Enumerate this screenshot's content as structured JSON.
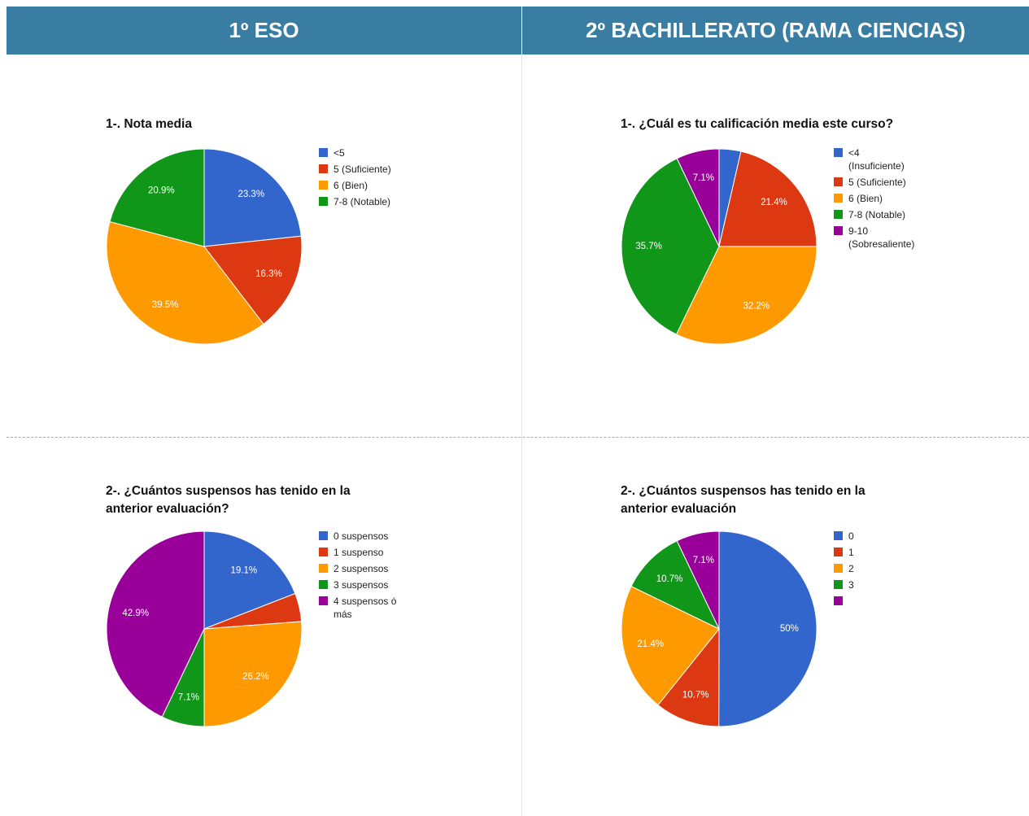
{
  "headers": [
    "1º ESO",
    "2º BACHILLERATO (RAMA CIENCIAS)"
  ],
  "chart_data": [
    {
      "type": "pie",
      "title": "1-. Nota media",
      "categories": [
        "<5",
        "5 (Suficiente)",
        "6 (Bien)",
        "7-8 (Notable)"
      ],
      "values": [
        23.3,
        16.3,
        39.5,
        20.9
      ],
      "value_labels": [
        "23.3%",
        "16.3%",
        "39.5%",
        "20.9%"
      ],
      "colors": [
        "#3366cc",
        "#dc3912",
        "#ff9900",
        "#109618"
      ]
    },
    {
      "type": "pie",
      "title": "1-. ¿Cuál es tu calificación media este curso?",
      "categories": [
        "<4 (Insuficiente)",
        "5 (Suficiente)",
        "6 (Bien)",
        "7-8 (Notable)",
        "9-10 (Sobresaliente)"
      ],
      "values": [
        3.6,
        21.4,
        32.2,
        35.7,
        7.1
      ],
      "value_labels": [
        null,
        "21.4%",
        "32.2%",
        "35.7%",
        "7.1%"
      ],
      "colors": [
        "#3366cc",
        "#dc3912",
        "#ff9900",
        "#109618",
        "#990099"
      ]
    },
    {
      "type": "pie",
      "title": "2-. ¿Cuántos suspensos has tenido en la anterior evaluación?",
      "categories": [
        "0 suspensos",
        "1 suspenso",
        "2 suspensos",
        "3 suspensos",
        "4 suspensos ó más"
      ],
      "values": [
        19.1,
        4.7,
        26.2,
        7.1,
        42.9
      ],
      "value_labels": [
        "19.1%",
        null,
        "26.2%",
        "7.1%",
        "42.9%"
      ],
      "colors": [
        "#3366cc",
        "#dc3912",
        "#ff9900",
        "#109618",
        "#990099"
      ]
    },
    {
      "type": "pie",
      "title": "2-. ¿Cuántos suspensos has tenido en la anterior evaluación",
      "categories": [
        "0",
        "1",
        "2",
        "3",
        null
      ],
      "values": [
        50,
        10.7,
        21.4,
        10.7,
        7.1
      ],
      "value_labels": [
        "50%",
        "10.7%",
        "21.4%",
        "10.7%",
        "7.1%"
      ],
      "colors": [
        "#3366cc",
        "#dc3912",
        "#ff9900",
        "#109618",
        "#990099"
      ]
    }
  ]
}
